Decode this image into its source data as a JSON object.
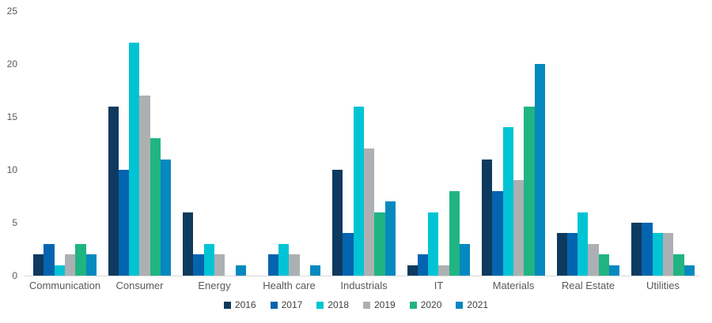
{
  "chart_data": {
    "type": "bar",
    "title": "",
    "xlabel": "",
    "ylabel": "",
    "grid": false,
    "legend_position": "bottom",
    "background_color": "#ffffff",
    "axis_line_color": "#d8d8d8",
    "tick_label_color": "#595959",
    "category_label_color": "#595959",
    "legend_label_color": "#404040",
    "y_axis": {
      "min": 0,
      "max": 25,
      "ticks": [
        0,
        5,
        10,
        15,
        20,
        25
      ]
    },
    "categories": [
      "Communication",
      "Consumer",
      "Energy",
      "Health care",
      "Industrials",
      "IT",
      "Materials",
      "Real Estate",
      "Utilities"
    ],
    "series": [
      {
        "name": "2016",
        "color": "#0d3a5e",
        "values": [
          2,
          16,
          6,
          0,
          10,
          1,
          11,
          4,
          5
        ]
      },
      {
        "name": "2017",
        "color": "#0564af",
        "values": [
          3,
          10,
          2,
          2,
          4,
          2,
          8,
          4,
          5
        ]
      },
      {
        "name": "2018",
        "color": "#00c4d4",
        "values": [
          1,
          22,
          3,
          3,
          16,
          6,
          14,
          6,
          4
        ]
      },
      {
        "name": "2019",
        "color": "#adb0b2",
        "values": [
          2,
          17,
          2,
          2,
          12,
          1,
          9,
          3,
          4
        ]
      },
      {
        "name": "2020",
        "color": "#20b482",
        "values": [
          3,
          13,
          0,
          0,
          6,
          8,
          16,
          2,
          2
        ]
      },
      {
        "name": "2021",
        "color": "#0689be",
        "values": [
          2,
          11,
          1,
          1,
          7,
          3,
          20,
          1,
          1
        ]
      }
    ]
  }
}
